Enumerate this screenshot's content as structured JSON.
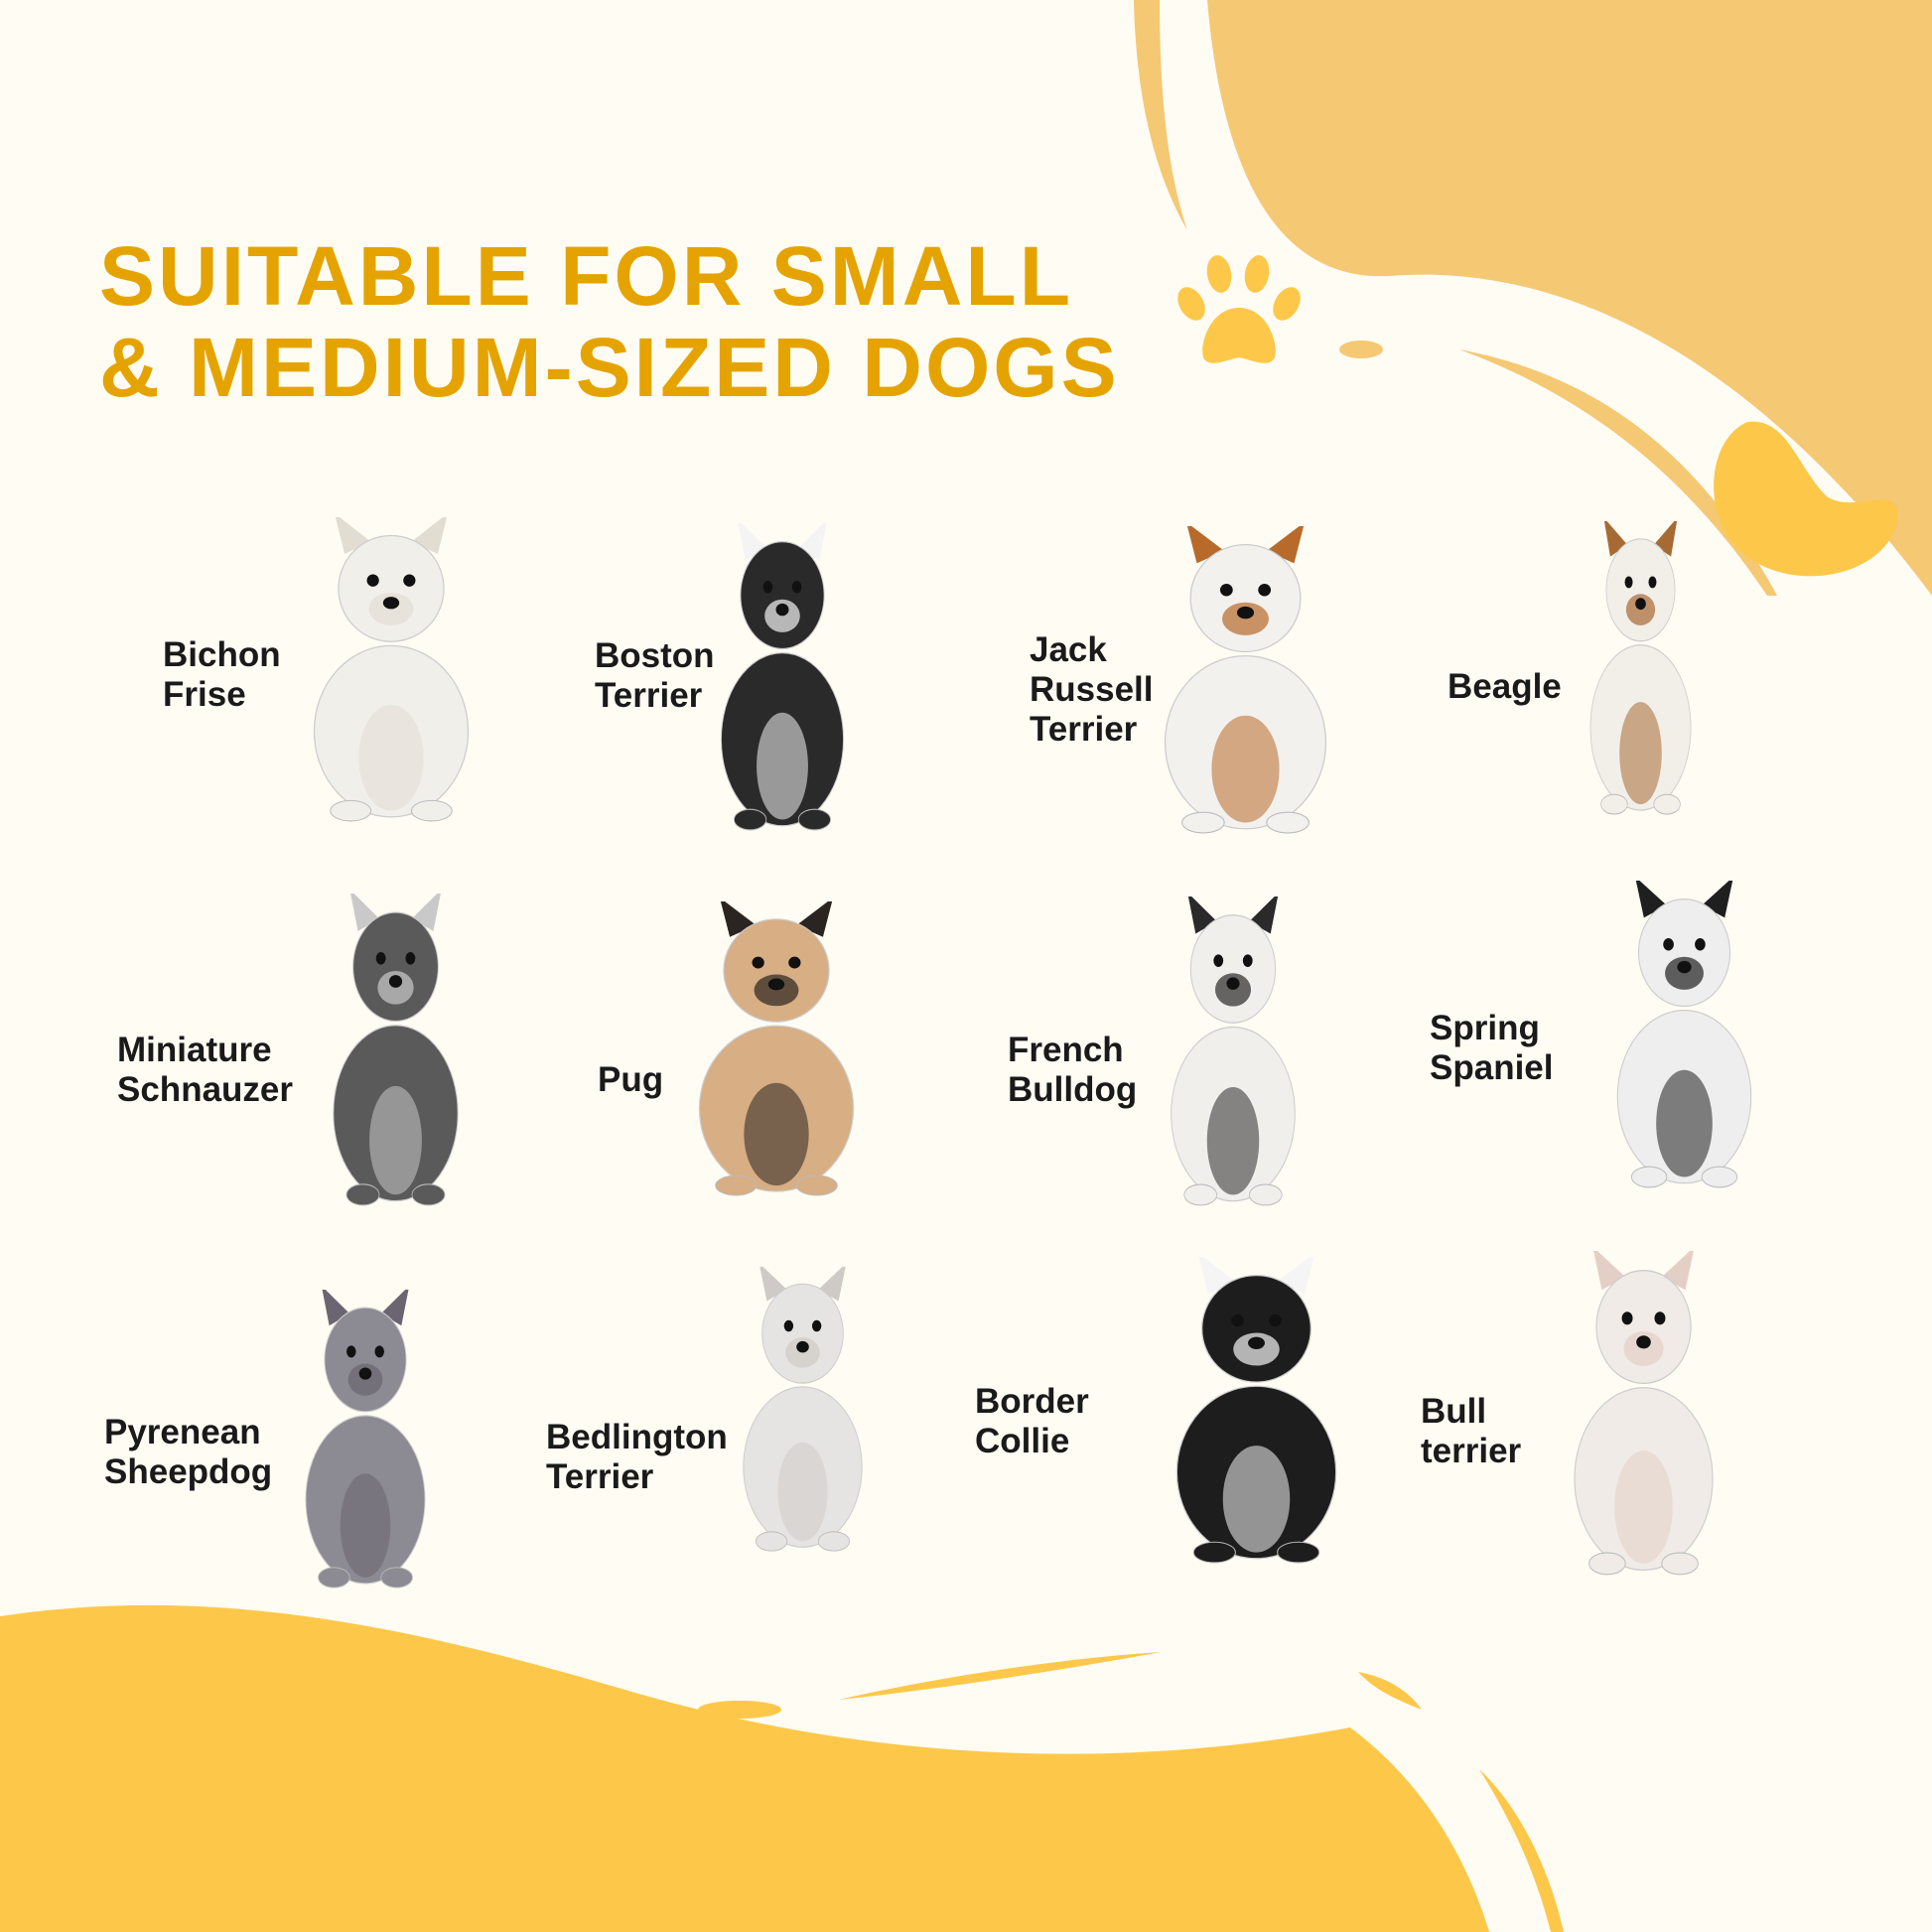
{
  "title": {
    "line1": "SUITABLE FOR SMALL",
    "line2": "& MEDIUM-SIZED DOGS"
  },
  "colors": {
    "title": "#E5A300",
    "background": "#FEFCF3",
    "blob_top": "#F5C873",
    "blob_bottom": "#FDC84A",
    "paw": "#FDC84A"
  },
  "decorations": {
    "paw_icon": "paw-print-icon"
  },
  "breeds": [
    {
      "label": "Bichon\nFrise",
      "fur": "#f1efea",
      "accent": "#e2ddd3"
    },
    {
      "label": "Boston\nTerrier",
      "fur": "#2a2a2a",
      "accent": "#f4f4f4"
    },
    {
      "label": "Jack\nRussell\nTerrier",
      "fur": "#f3f1ee",
      "accent": "#b76a2a"
    },
    {
      "label": "Beagle",
      "fur": "#f2efe9",
      "accent": "#a86a34"
    },
    {
      "label": "Miniature\nSchnauzer",
      "fur": "#5a5a5a",
      "accent": "#c9c9c9"
    },
    {
      "label": "Pug",
      "fur": "#d8ae84",
      "accent": "#2b2420"
    },
    {
      "label": "French\nBulldog",
      "fur": "#f1efec",
      "accent": "#2a2a2a"
    },
    {
      "label": "Spring\nSpaniel",
      "fur": "#eeeeee",
      "accent": "#1f1f1f"
    },
    {
      "label": "Pyrenean\nSheepdog",
      "fur": "#8c8a92",
      "accent": "#6a6570"
    },
    {
      "label": "Bedlington\nTerrier",
      "fur": "#e6e4e2",
      "accent": "#cfcac6"
    },
    {
      "label": "Border\nCollie",
      "fur": "#1d1d1d",
      "accent": "#f5f5f5"
    },
    {
      "label": "Bull\nterrier",
      "fur": "#f0ebe6",
      "accent": "#e4cfc6"
    }
  ]
}
